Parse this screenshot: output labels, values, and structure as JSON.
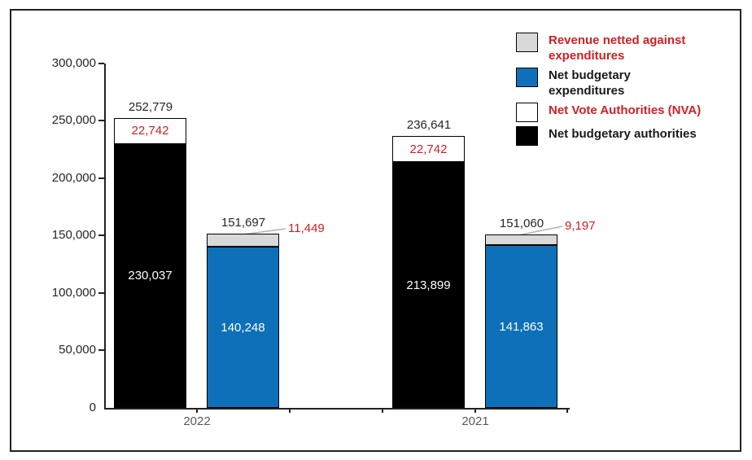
{
  "chart_data": {
    "type": "bar",
    "stacked": true,
    "title": "",
    "xlabel": "",
    "ylabel": "",
    "ylim": [
      0,
      300000
    ],
    "y_tick_step": 50000,
    "y_tick_labels_top_to_bottom": [
      "300,000",
      "250,000",
      "200,000",
      "150,000",
      "100,000",
      "50,000",
      "0"
    ],
    "categories": [
      "2022",
      "2021"
    ],
    "grid": false,
    "legend_position": "top-right",
    "series": [
      {
        "name": "Net budgetary authorities",
        "values": [
          230037,
          213899
        ]
      },
      {
        "name": "Net Vote Authorities (NVA)",
        "values": [
          22742,
          22742
        ]
      },
      {
        "name": "Net budgetary expenditures",
        "values": [
          140248,
          141863
        ]
      },
      {
        "name": "Revenue netted against expenditures",
        "values": [
          11449,
          9197
        ]
      },
      {
        "name": "Total authorities (NVA stack)",
        "values": [
          252779,
          236641
        ]
      },
      {
        "name": "Total expenditures stack",
        "values": [
          151697,
          151060
        ]
      }
    ],
    "bars": [
      {
        "category": "2022",
        "kind": "authorities",
        "total": 252779,
        "total_label": "252,779",
        "segments": [
          {
            "name": "Net budgetary authorities",
            "value": 230037,
            "label": "230,037",
            "color": "#000000"
          },
          {
            "name": "Net Vote Authorities (NVA)",
            "value": 22742,
            "label": "22,742",
            "color": "#ffffff"
          }
        ]
      },
      {
        "category": "2022",
        "kind": "expenditures",
        "total": 151697,
        "total_label": "151,697",
        "segments": [
          {
            "name": "Net budgetary expenditures",
            "value": 140248,
            "label": "140,248",
            "color": "#0d70b8"
          },
          {
            "name": "Revenue netted against expenditures",
            "value": 11449,
            "label": "11,449",
            "color": "#d9d9d9"
          }
        ]
      },
      {
        "category": "2021",
        "kind": "authorities",
        "total": 236641,
        "total_label": "236,641",
        "segments": [
          {
            "name": "Net budgetary authorities",
            "value": 213899,
            "label": "213,899",
            "color": "#000000"
          },
          {
            "name": "Net Vote Authorities (NVA)",
            "value": 22742,
            "label": "22,742",
            "color": "#ffffff"
          }
        ]
      },
      {
        "category": "2021",
        "kind": "expenditures",
        "total": 151060,
        "total_label": "151,060",
        "segments": [
          {
            "name": "Net budgetary expenditures",
            "value": 141863,
            "label": "141,863",
            "color": "#0d70b8"
          },
          {
            "name": "Revenue netted against expenditures",
            "value": 9197,
            "label": "9,197",
            "color": "#d9d9d9"
          }
        ]
      }
    ]
  },
  "legend": {
    "items": [
      {
        "label": "Revenue netted against expenditures",
        "swatch_color": "#d9d9d9",
        "text_color": "#cf2026"
      },
      {
        "label": "Net budgetary expenditures",
        "swatch_color": "#0d70b8",
        "text_color": "#1a1a1a"
      },
      {
        "label": "Net Vote Authorities (NVA)",
        "swatch_color": "#ffffff",
        "text_color": "#cf2026"
      },
      {
        "label": "Net budgetary authorities",
        "swatch_color": "#000000",
        "text_color": "#1a1a1a"
      }
    ]
  },
  "colors": {
    "accent_red": "#cf2026",
    "bar_blue": "#0d70b8",
    "bar_gray": "#d9d9d9",
    "bar_black": "#000000",
    "axis": "#222222"
  }
}
